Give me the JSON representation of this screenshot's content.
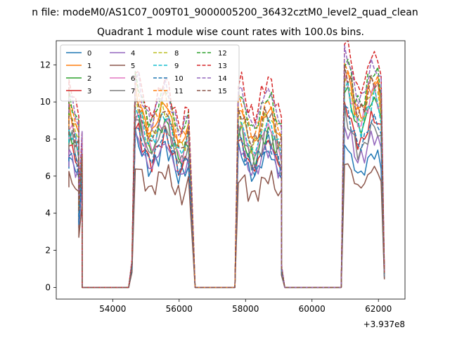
{
  "chart_data": {
    "type": "line",
    "suptitle": "n file: modeM0/AS1C07_009T01_9000005200_36432cztM0_level2_quad_clean",
    "title": "Quadrant 1 module wise count rates with 100.0s bins.",
    "xlabel": "",
    "ylabel": "",
    "offset_text": "+3.937e8",
    "xlim": [
      52300,
      62800
    ],
    "ylim": [
      -0.63,
      13.3
    ],
    "x_ticks": [
      54000,
      56000,
      58000,
      60000,
      62000
    ],
    "x_tick_labels": [
      "54000",
      "56000",
      "58000",
      "60000",
      "62000"
    ],
    "y_ticks": [
      0,
      2,
      4,
      6,
      8,
      10,
      12
    ],
    "y_tick_labels": [
      "0",
      "2",
      "4",
      "6",
      "8",
      "10",
      "12"
    ],
    "legend": {
      "placement": "upper-left",
      "columns": 4
    },
    "segments": [
      {
        "start": 52680,
        "bins": 5,
        "decline": 0.1
      },
      {
        "start": 54680,
        "bins": 17,
        "decline": 0.25
      },
      {
        "start": 57780,
        "bins": 14,
        "decline": 0.05
      },
      {
        "start": 60980,
        "bins": 12,
        "decline": 0.2
      }
    ],
    "gap_bins": [
      {
        "x": 53080,
        "y": 0.0
      },
      {
        "x": 54480,
        "y": 0.0
      },
      {
        "x": 56480,
        "y": 0.0
      },
      {
        "x": 57680,
        "y": 0.0
      },
      {
        "x": 59180,
        "y": 0.0
      },
      {
        "x": 60880,
        "y": 0.0
      }
    ],
    "edge_bins": [
      {
        "x": 52980,
        "frac": 0.5
      },
      {
        "x": 54580,
        "frac": 0.15
      },
      {
        "x": 56380,
        "frac": 0.5
      },
      {
        "x": 57680,
        "frac": 0.0
      },
      {
        "x": 59080,
        "frac": 0.12
      },
      {
        "x": 62180,
        "frac": 0.07
      }
    ],
    "series": [
      {
        "name": "0",
        "color": "#1f77b4",
        "dash": false,
        "levels": [
          6.4,
          7.3,
          6.7,
          7.0
        ]
      },
      {
        "name": "1",
        "color": "#ff7f0e",
        "dash": false,
        "levels": [
          8.7,
          9.5,
          8.8,
          10.6
        ]
      },
      {
        "name": "2",
        "color": "#2ca02c",
        "dash": false,
        "levels": [
          7.6,
          8.5,
          7.7,
          9.8
        ]
      },
      {
        "name": "3",
        "color": "#d62728",
        "dash": false,
        "levels": [
          7.0,
          7.8,
          7.2,
          8.9
        ]
      },
      {
        "name": "4",
        "color": "#9467bd",
        "dash": false,
        "levels": [
          6.5,
          7.4,
          6.9,
          7.9
        ]
      },
      {
        "name": "5",
        "color": "#8c564b",
        "dash": false,
        "levels": [
          5.4,
          6.0,
          5.5,
          6.2
        ]
      },
      {
        "name": "6",
        "color": "#e377c2",
        "dash": false,
        "levels": [
          8.0,
          8.6,
          8.0,
          10.2
        ]
      },
      {
        "name": "7",
        "color": "#7f7f7f",
        "dash": false,
        "levels": [
          7.4,
          8.3,
          7.6,
          8.4
        ]
      },
      {
        "name": "8",
        "color": "#bcbd22",
        "dash": true,
        "levels": [
          8.5,
          9.2,
          8.5,
          10.3
        ]
      },
      {
        "name": "9",
        "color": "#17becf",
        "dash": true,
        "levels": [
          7.8,
          8.9,
          8.2,
          9.9
        ]
      },
      {
        "name": "10",
        "color": "#1f77b4",
        "dash": true,
        "levels": [
          6.8,
          7.9,
          7.2,
          8.8
        ]
      },
      {
        "name": "11",
        "color": "#ff7f0e",
        "dash": true,
        "levels": [
          9.0,
          9.8,
          9.2,
          11.0
        ]
      },
      {
        "name": "12",
        "color": "#2ca02c",
        "dash": true,
        "levels": [
          9.3,
          10.2,
          9.5,
          11.3
        ]
      },
      {
        "name": "13",
        "color": "#d62728",
        "dash": true,
        "levels": [
          10.0,
          10.7,
          10.3,
          12.2
        ]
      },
      {
        "name": "14",
        "color": "#9467bd",
        "dash": true,
        "levels": [
          9.4,
          10.3,
          9.8,
          11.6
        ]
      },
      {
        "name": "15",
        "color": "#8c564b",
        "dash": true,
        "levels": [
          8.2,
          9.1,
          8.7,
          10.8
        ]
      }
    ]
  }
}
